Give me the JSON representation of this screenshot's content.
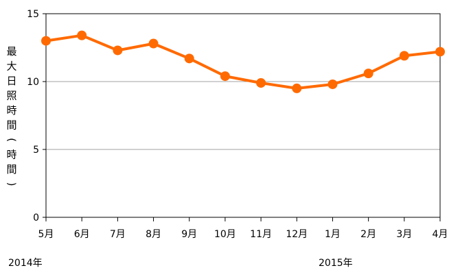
{
  "chart_data": {
    "type": "line",
    "categories": [
      "5月",
      "6月",
      "7月",
      "8月",
      "9月",
      "10月",
      "11月",
      "12月",
      "1月",
      "2月",
      "3月",
      "4月"
    ],
    "series": [
      {
        "values": [
          13.0,
          13.4,
          12.3,
          12.8,
          11.7,
          10.4,
          9.9,
          9.5,
          9.8,
          10.6,
          11.9,
          12.2
        ]
      }
    ],
    "xlabel": "",
    "ylabel": "最大日照時間(時間)",
    "ylim": [
      0,
      15
    ],
    "yticks": [
      "0",
      "5",
      "10",
      "15"
    ],
    "year_labels": [
      "2014年",
      "2015年"
    ],
    "grid": true,
    "line_color": "#ff6a00",
    "marker_color": "#ff6a00"
  }
}
